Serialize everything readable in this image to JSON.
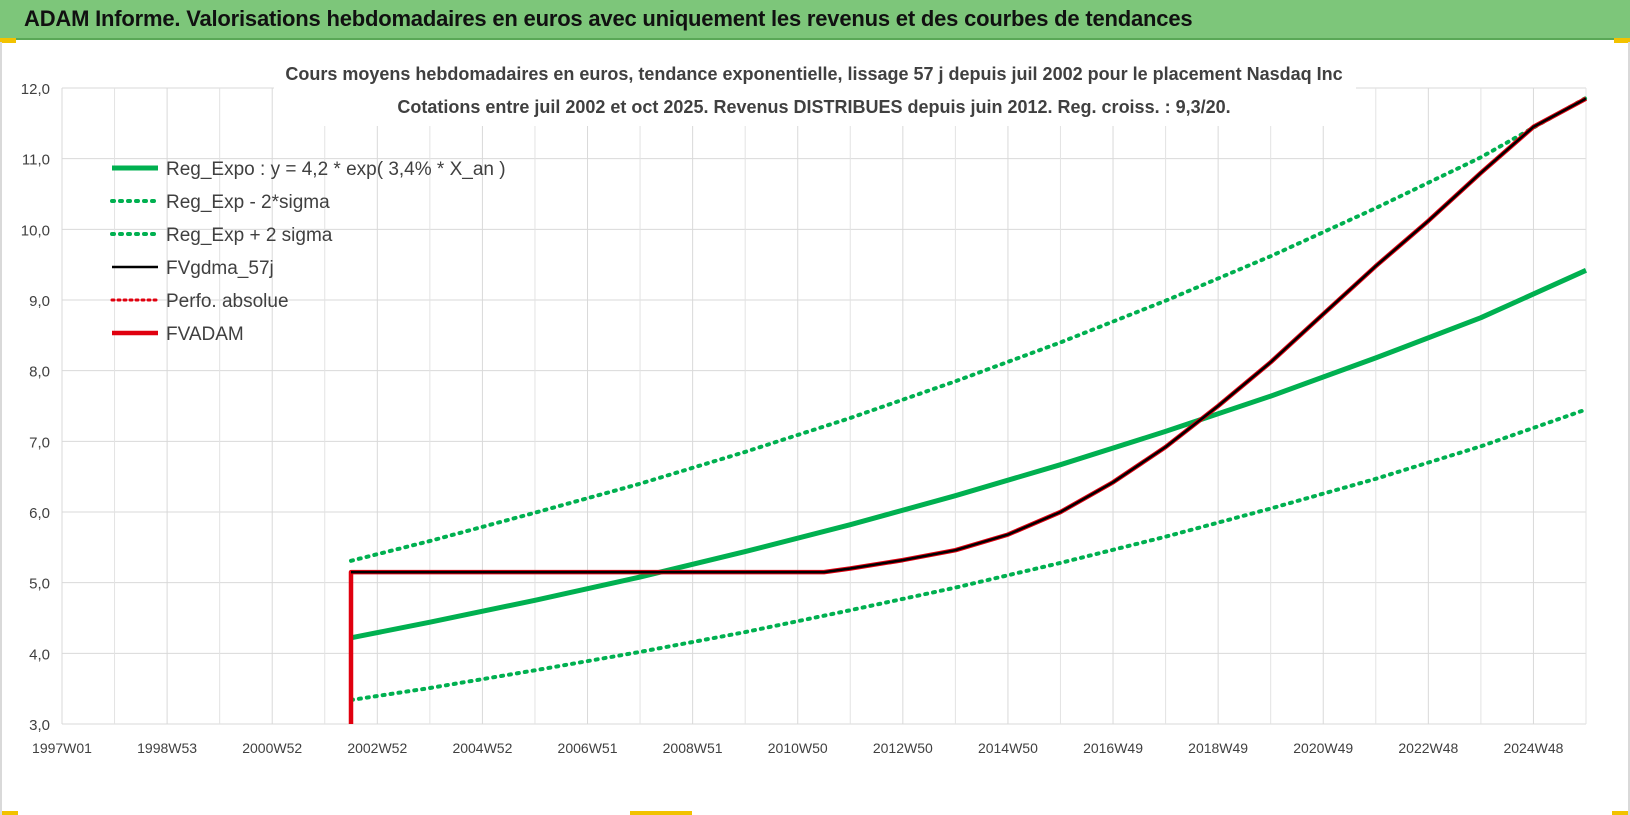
{
  "header": {
    "title": "ADAM Informe. Valorisations hebdomadaires en euros avec uniquement les revenus et des courbes de tendances"
  },
  "chart_data": {
    "type": "line",
    "title_line1": "Cours moyens hebdomadaires en euros, tendance exponentielle, lissage 57 j depuis juil 2002 pour le placement Nasdaq Inc",
    "title_line2": "Cotations entre juil 2002 et oct 2025. Revenus DISTRIBUES depuis juin 2012. Reg. croiss. : 9,3/20.",
    "xlabel": "",
    "ylabel": "",
    "ylim": [
      3.0,
      12.0
    ],
    "yticks": [
      "3,0",
      "4,0",
      "5,0",
      "6,0",
      "7,0",
      "8,0",
      "9,0",
      "10,0",
      "11,0",
      "12,0"
    ],
    "xlim": [
      1997.0,
      2026.0
    ],
    "xticks": [
      "1997W01",
      "1998W53",
      "2000W52",
      "2002W52",
      "2004W52",
      "2006W51",
      "2008W51",
      "2010W50",
      "2012W50",
      "2014W50",
      "2016W49",
      "2018W49",
      "2020W49",
      "2022W48",
      "2024W48"
    ],
    "grid": true,
    "legend_position": "top-left",
    "colors": {
      "green": "#00b050",
      "black": "#000000",
      "red": "#e0000f"
    },
    "series": [
      {
        "name": "Reg_Expo : y = 4,2 * exp( 3,4% *  X_an )",
        "style": "solid-green-thick",
        "x": [
          2002.5,
          2004,
          2006,
          2008,
          2010,
          2012,
          2014,
          2016,
          2018,
          2020,
          2022,
          2024,
          2026
        ],
        "values": [
          4.22,
          4.44,
          4.75,
          5.08,
          5.44,
          5.82,
          6.23,
          6.67,
          7.14,
          7.64,
          8.18,
          8.75,
          9.42
        ]
      },
      {
        "name": "Reg_Exp - 2*sigma",
        "style": "dotted-green",
        "x": [
          2002.5,
          2004,
          2006,
          2008,
          2010,
          2012,
          2014,
          2016,
          2018,
          2020,
          2022,
          2024,
          2026
        ],
        "values": [
          3.34,
          3.51,
          3.76,
          4.02,
          4.3,
          4.61,
          4.93,
          5.28,
          5.65,
          6.05,
          6.47,
          6.93,
          7.45
        ]
      },
      {
        "name": "Reg_Exp + 2 sigma",
        "style": "dotted-green",
        "x": [
          2002.5,
          2004,
          2006,
          2008,
          2010,
          2012,
          2014,
          2016,
          2018,
          2020,
          2022,
          2024,
          2026
        ],
        "values": [
          5.31,
          5.59,
          5.99,
          6.4,
          6.85,
          7.33,
          7.85,
          8.4,
          8.99,
          9.62,
          10.3,
          11.02,
          11.86
        ]
      },
      {
        "name": "FVgdma_57j",
        "style": "solid-black",
        "x": [
          2002.5,
          2004,
          2006,
          2008,
          2010,
          2011.5,
          2012,
          2013,
          2014,
          2015,
          2016,
          2017,
          2018,
          2019,
          2020,
          2021,
          2022,
          2023,
          2024,
          2025,
          2026
        ],
        "values": [
          5.15,
          5.15,
          5.15,
          5.15,
          5.15,
          5.15,
          5.2,
          5.32,
          5.46,
          5.68,
          6.0,
          6.42,
          6.92,
          7.5,
          8.12,
          8.8,
          9.48,
          10.12,
          10.8,
          11.45,
          11.85
        ]
      },
      {
        "name": "Perfo. absolue",
        "style": "dotted-red",
        "x": [],
        "values": []
      },
      {
        "name": "FVADAM",
        "style": "solid-red-thick",
        "x": [
          2002.5,
          2004,
          2006,
          2008,
          2010,
          2011.5,
          2012,
          2013,
          2014,
          2015,
          2016,
          2017,
          2018,
          2019,
          2020,
          2021,
          2022,
          2023,
          2024,
          2025,
          2026
        ],
        "values": [
          5.15,
          5.15,
          5.15,
          5.15,
          5.15,
          5.15,
          5.2,
          5.32,
          5.46,
          5.68,
          6.0,
          6.42,
          6.92,
          7.5,
          8.12,
          8.8,
          9.48,
          10.12,
          10.8,
          11.45,
          11.85
        ]
      }
    ]
  }
}
